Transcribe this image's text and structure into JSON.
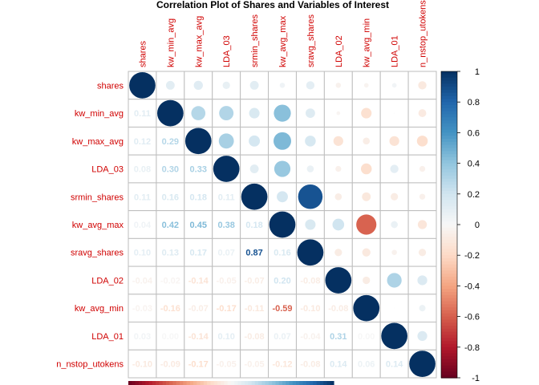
{
  "chart_data": {
    "type": "heatmap",
    "title": "Correlation Plot of Shares and Variables of Interest",
    "variables": [
      "shares",
      "kw_min_avg",
      "kw_max_avg",
      "LDA_03",
      "srmin_shares",
      "kw_avg_max",
      "sravg_shares",
      "LDA_02",
      "kw_avg_min",
      "LDA_01",
      "n_nstop_utokens"
    ],
    "matrix": [
      [
        1.0,
        0.11,
        0.12,
        0.08,
        0.11,
        0.04,
        0.1,
        -0.04,
        -0.03,
        0.03,
        -0.1
      ],
      [
        0.11,
        1.0,
        0.29,
        0.3,
        0.16,
        0.42,
        0.13,
        -0.02,
        -0.16,
        0.0,
        -0.09
      ],
      [
        0.12,
        0.29,
        1.0,
        0.33,
        0.18,
        0.45,
        0.17,
        -0.14,
        -0.07,
        -0.14,
        -0.17
      ],
      [
        0.08,
        0.3,
        0.33,
        1.0,
        0.11,
        0.38,
        0.07,
        -0.05,
        -0.17,
        0.1,
        -0.05
      ],
      [
        0.11,
        0.16,
        0.18,
        0.11,
        1.0,
        0.18,
        0.87,
        -0.07,
        -0.11,
        -0.08,
        -0.05
      ],
      [
        0.04,
        0.42,
        0.45,
        0.38,
        0.18,
        1.0,
        0.16,
        0.2,
        -0.59,
        0.07,
        -0.12
      ],
      [
        0.1,
        0.13,
        0.17,
        0.07,
        0.87,
        0.16,
        1.0,
        -0.08,
        -0.1,
        -0.04,
        -0.08
      ],
      [
        -0.04,
        -0.02,
        -0.14,
        -0.05,
        -0.07,
        0.2,
        -0.08,
        1.0,
        -0.08,
        0.31,
        0.14
      ],
      [
        -0.03,
        -0.16,
        -0.07,
        -0.17,
        -0.11,
        -0.59,
        -0.1,
        -0.08,
        1.0,
        0.0,
        0.06
      ],
      [
        0.03,
        0.0,
        -0.14,
        0.1,
        -0.08,
        0.07,
        -0.04,
        0.31,
        0.0,
        1.0,
        0.14
      ],
      [
        -0.1,
        -0.09,
        -0.17,
        -0.05,
        -0.05,
        -0.12,
        -0.08,
        0.14,
        0.06,
        0.14,
        1.0
      ]
    ],
    "upper_method": "circle",
    "lower_method": "number",
    "colorbar": {
      "range": [
        -1,
        1
      ],
      "ticks": [
        "1",
        "0.8",
        "0.6",
        "0.4",
        "0.2",
        "0",
        "-0.2",
        "-0.4",
        "-0.6",
        "-0.8",
        "-1"
      ],
      "position": "right"
    },
    "colors": {
      "strong_positive": "#053061",
      "positive": "#4393c3",
      "neutral": "#f7f7f7",
      "negative": "#d6604d",
      "strong_negative": "#67001f",
      "label_text": "#d00000",
      "grid": "#bebebe"
    }
  }
}
